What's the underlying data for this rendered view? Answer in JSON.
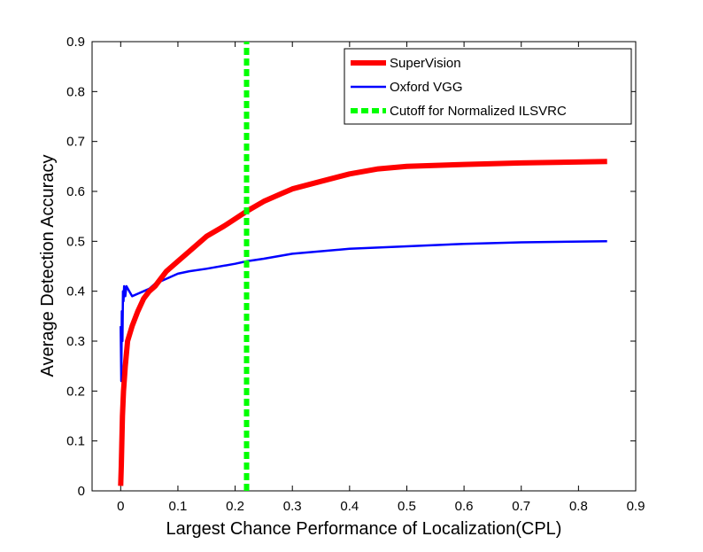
{
  "chart_data": {
    "type": "line",
    "title": "",
    "xlabel": "Largest Chance Performance of Localization(CPL)",
    "ylabel": "Average Detection Accuracy",
    "xlim": [
      -0.05,
      0.9
    ],
    "ylim": [
      0,
      0.9
    ],
    "xticks": [
      "0",
      "0.1",
      "0.2",
      "0.3",
      "0.4",
      "0.5",
      "0.6",
      "0.7",
      "0.8",
      "0.9"
    ],
    "yticks": [
      "0",
      "0.1",
      "0.2",
      "0.3",
      "0.4",
      "0.5",
      "0.6",
      "0.7",
      "0.8",
      "0.9"
    ],
    "grid": false,
    "legend": "top-right",
    "series": [
      {
        "name": "SuperVision",
        "color": "#ff0000",
        "style": "solid-thick",
        "x": [
          0,
          0.001,
          0.003,
          0.005,
          0.008,
          0.012,
          0.02,
          0.03,
          0.04,
          0.05,
          0.06,
          0.08,
          0.1,
          0.12,
          0.15,
          0.18,
          0.2,
          0.22,
          0.25,
          0.28,
          0.3,
          0.35,
          0.4,
          0.45,
          0.5,
          0.6,
          0.7,
          0.85
        ],
        "y": [
          0.01,
          0.05,
          0.15,
          0.2,
          0.25,
          0.3,
          0.33,
          0.36,
          0.385,
          0.4,
          0.41,
          0.44,
          0.46,
          0.48,
          0.51,
          0.53,
          0.545,
          0.56,
          0.58,
          0.595,
          0.605,
          0.62,
          0.635,
          0.645,
          0.65,
          0.654,
          0.657,
          0.66
        ]
      },
      {
        "name": "Oxford VGG",
        "color": "#0000ff",
        "style": "solid",
        "x": [
          0,
          0.001,
          0.002,
          0.003,
          0.004,
          0.005,
          0.006,
          0.008,
          0.01,
          0.015,
          0.02,
          0.03,
          0.04,
          0.05,
          0.06,
          0.08,
          0.1,
          0.12,
          0.15,
          0.2,
          0.22,
          0.25,
          0.3,
          0.4,
          0.5,
          0.6,
          0.7,
          0.85
        ],
        "y": [
          0.33,
          0.22,
          0.36,
          0.3,
          0.4,
          0.38,
          0.41,
          0.39,
          0.41,
          0.4,
          0.39,
          0.395,
          0.4,
          0.405,
          0.415,
          0.425,
          0.435,
          0.44,
          0.445,
          0.455,
          0.46,
          0.465,
          0.475,
          0.485,
          0.49,
          0.495,
          0.498,
          0.5
        ]
      },
      {
        "name": "Cutoff for Normalized ILSVRC",
        "color": "#00ff00",
        "style": "dashed-thick",
        "x": [
          0.22,
          0.22
        ],
        "y": [
          0,
          0.9
        ]
      }
    ]
  }
}
